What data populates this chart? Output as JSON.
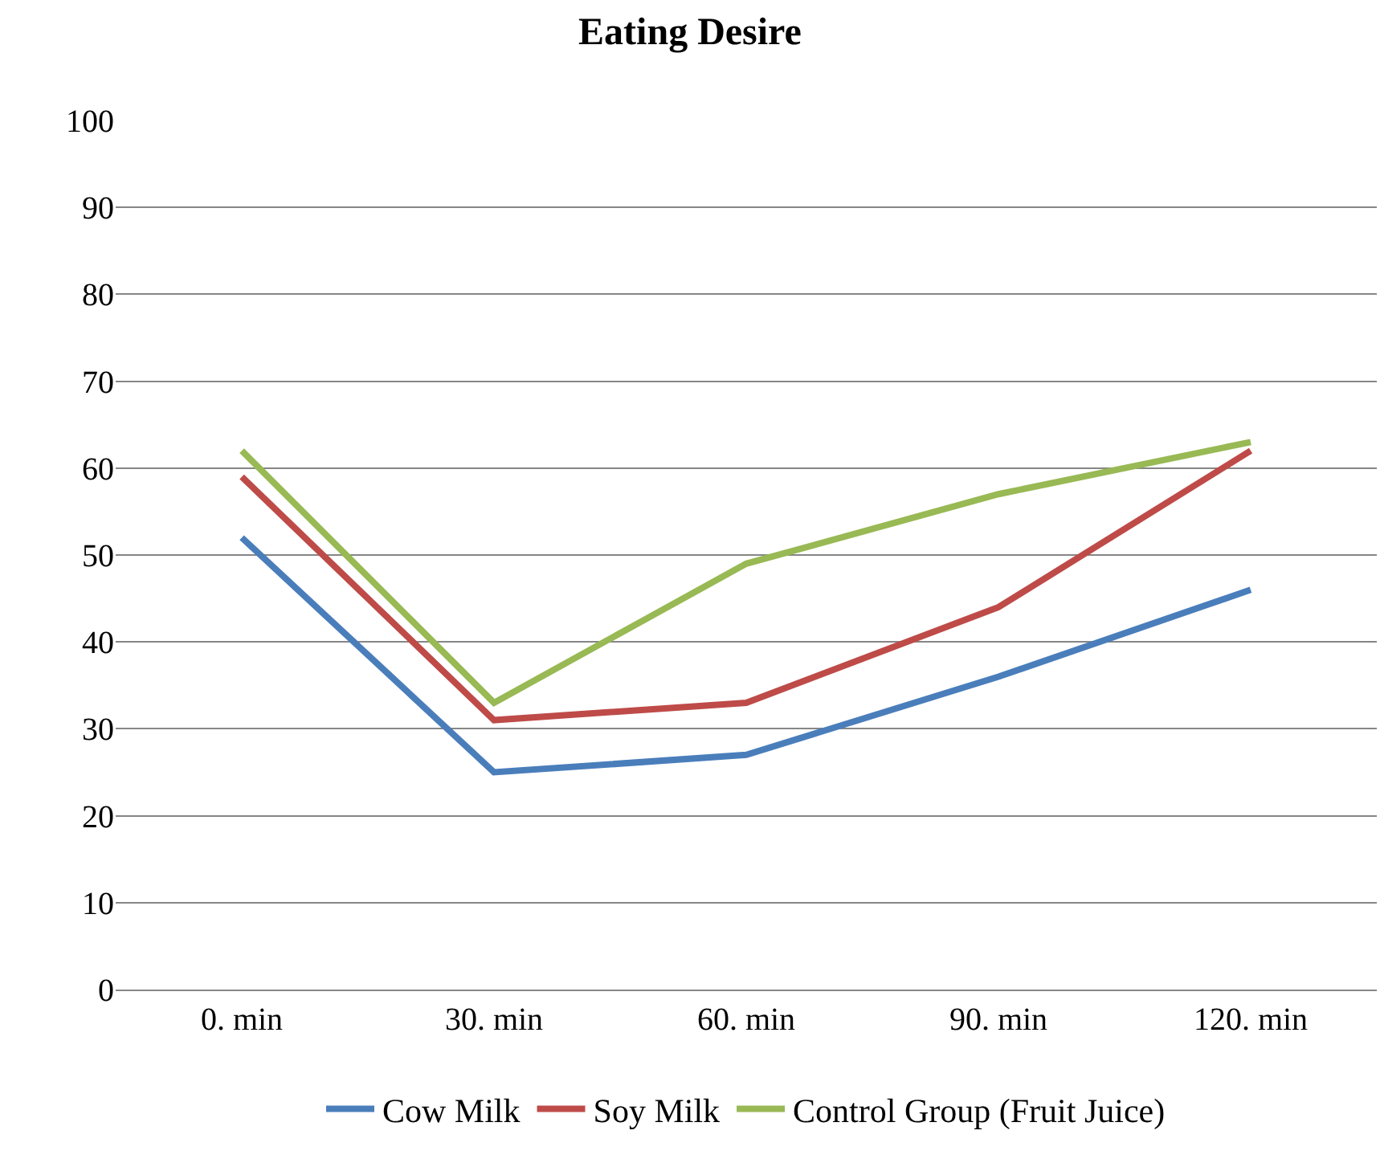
{
  "chart_data": {
    "type": "line",
    "title": "Eating Desire",
    "categories": [
      "0. min",
      "30. min",
      "60. min",
      "90. min",
      "120. min"
    ],
    "series": [
      {
        "name": "Cow Milk",
        "color": "#4a7ebb",
        "values": [
          52,
          25,
          27,
          36,
          46
        ]
      },
      {
        "name": "Soy Milk",
        "color": "#be4b48",
        "values": [
          59,
          31,
          33,
          44,
          62
        ]
      },
      {
        "name": "Control Group (Fruit Juice)",
        "color": "#98b954",
        "values": [
          62,
          33,
          49,
          57,
          63
        ]
      }
    ],
    "ylim": [
      0,
      100
    ],
    "yticks": [
      0,
      10,
      20,
      30,
      40,
      50,
      60,
      70,
      80,
      90,
      100
    ],
    "grid": "y",
    "legend": "bottom",
    "marker": "none",
    "line_style": "solid"
  }
}
